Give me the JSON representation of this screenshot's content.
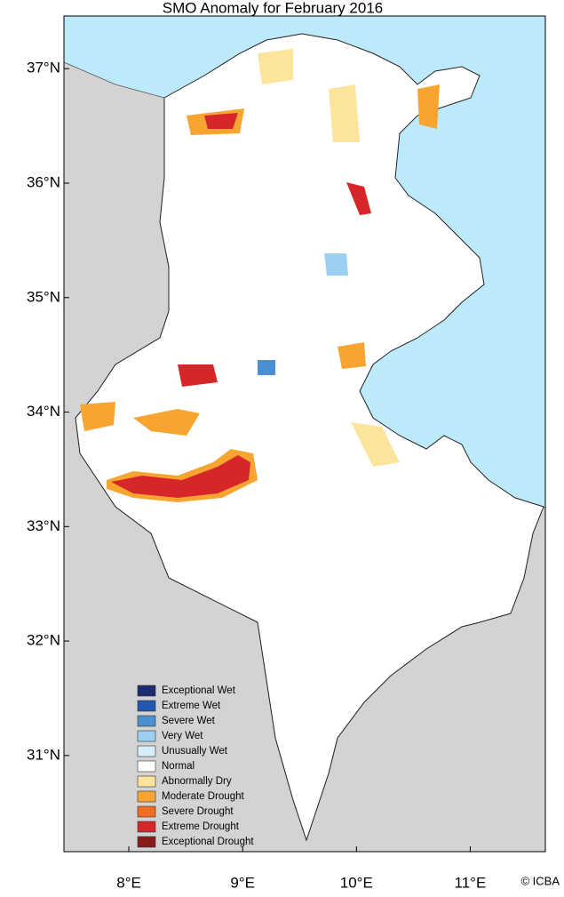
{
  "map": {
    "title": "SMO Anomaly for February 2016",
    "xlim": [
      7.43,
      11.66
    ],
    "ylim": [
      30.16,
      37.46
    ],
    "xticks": [
      {
        "value": 8,
        "label": "8°E"
      },
      {
        "value": 9,
        "label": "9°E"
      },
      {
        "value": 10,
        "label": "10°E"
      },
      {
        "value": 11,
        "label": "11°E"
      }
    ],
    "yticks": [
      {
        "value": 31,
        "label": "31°N"
      },
      {
        "value": 32,
        "label": "32°N"
      },
      {
        "value": 33,
        "label": "33°N"
      },
      {
        "value": 34,
        "label": "34°N"
      },
      {
        "value": 35,
        "label": "35°N"
      },
      {
        "value": 36,
        "label": "36°N"
      },
      {
        "value": 37,
        "label": "37°N"
      }
    ],
    "legend": [
      {
        "name": "Exceptional Wet",
        "color": "#1a2d6e"
      },
      {
        "name": "Extreme Wet",
        "color": "#2458b0"
      },
      {
        "name": "Severe Wet",
        "color": "#4a90d0"
      },
      {
        "name": "Very Wet",
        "color": "#9dd0f0"
      },
      {
        "name": "Unusually Wet",
        "color": "#d6eef8"
      },
      {
        "name": "Normal",
        "color": "#ffffff"
      },
      {
        "name": "Abnormally Dry",
        "color": "#fde49c"
      },
      {
        "name": "Moderate Drought",
        "color": "#f7a530"
      },
      {
        "name": "Severe Drought",
        "color": "#f26d21"
      },
      {
        "name": "Extreme Drought",
        "color": "#d7262a"
      },
      {
        "name": "Exceptional Drought",
        "color": "#8b1a1a"
      }
    ],
    "credit": "© ICBA"
  }
}
